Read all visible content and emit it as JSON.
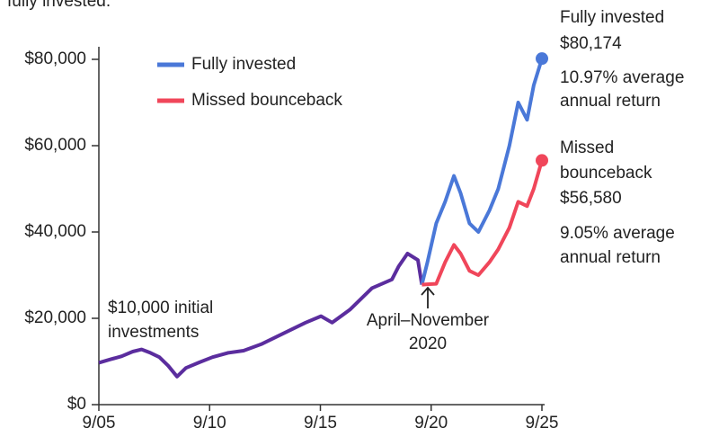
{
  "chart_data": {
    "type": "line",
    "caption_fragment": "fully invested.",
    "x": [
      2005.67,
      2006.2,
      2006.7,
      2007.2,
      2007.6,
      2008.0,
      2008.4,
      2008.8,
      2009.2,
      2009.6,
      2010.2,
      2010.8,
      2011.5,
      2012.2,
      2013.0,
      2014.0,
      2015.0,
      2015.7,
      2016.2,
      2017.0,
      2018.0,
      2018.9,
      2019.2,
      2019.6,
      2020.07,
      2020.25,
      2020.5,
      2020.9,
      2021.3,
      2021.7,
      2022.0,
      2022.4,
      2022.8,
      2023.3,
      2023.7,
      2024.2,
      2024.6,
      2025.0,
      2025.3,
      2025.67
    ],
    "series": [
      {
        "color": "#5b2d9e",
        "values": [
          9700,
          10500,
          11200,
          12300,
          12800,
          12000,
          11000,
          9000,
          6500,
          8500,
          9800,
          11000,
          12000,
          12500,
          14000,
          16500,
          19000,
          20500,
          19000,
          22000,
          27000,
          29000,
          32000,
          35000,
          33500,
          27800,
          null,
          null,
          null,
          null,
          null,
          null,
          null,
          null,
          null,
          null,
          null,
          null,
          null,
          null
        ]
      },
      {
        "name": "Fully invested",
        "color": "#4a78d8",
        "values": [
          null,
          null,
          null,
          null,
          null,
          null,
          null,
          null,
          null,
          null,
          null,
          null,
          null,
          null,
          null,
          null,
          null,
          null,
          null,
          null,
          null,
          null,
          null,
          null,
          null,
          27800,
          33000,
          42000,
          47000,
          53000,
          49000,
          42000,
          40000,
          45000,
          50000,
          60000,
          70000,
          66000,
          74000,
          80174
        ],
        "value_labels": [
          null,
          null,
          null,
          null,
          null,
          null,
          null,
          null,
          null,
          null,
          null,
          null,
          null,
          null,
          null,
          null,
          null,
          null,
          null,
          null,
          null,
          null,
          null,
          null,
          null,
          null,
          null,
          null,
          null,
          null,
          null,
          null,
          null,
          null,
          null,
          null,
          null,
          null,
          null,
          "$80,174"
        ]
      },
      {
        "name": "Missed bounceback",
        "color": "#f0465a",
        "values": [
          null,
          null,
          null,
          null,
          null,
          null,
          null,
          null,
          null,
          null,
          null,
          null,
          null,
          null,
          null,
          null,
          null,
          null,
          null,
          null,
          null,
          null,
          null,
          null,
          null,
          27800,
          27900,
          28000,
          33000,
          37000,
          35000,
          31000,
          30000,
          33000,
          36000,
          41000,
          47000,
          46000,
          50000,
          56580
        ],
        "value_labels": [
          null,
          null,
          null,
          null,
          null,
          null,
          null,
          null,
          null,
          null,
          null,
          null,
          null,
          null,
          null,
          null,
          null,
          null,
          null,
          null,
          null,
          null,
          null,
          null,
          null,
          null,
          null,
          null,
          null,
          null,
          null,
          null,
          null,
          null,
          null,
          null,
          null,
          null,
          null,
          "$56,580"
        ]
      }
    ],
    "annotations": {
      "fully_invested": [
        "Fully invested",
        "10.97% average",
        "annual return"
      ],
      "missed": [
        "Missed",
        "bounceback",
        "9.05% average",
        "annual return"
      ],
      "initial": [
        "$10,000 initial",
        "investments"
      ],
      "period": [
        "April–November",
        "2020"
      ]
    },
    "xlim": [
      2005.67,
      2025.67
    ],
    "xticks": [
      {
        "value": 2005.67,
        "label": "9/05"
      },
      {
        "value": 2010.67,
        "label": "9/10"
      },
      {
        "value": 2015.67,
        "label": "9/15"
      },
      {
        "value": 2020.67,
        "label": "9/20"
      },
      {
        "value": 2025.67,
        "label": "9/25"
      }
    ],
    "ylim": [
      0,
      80000
    ],
    "yticks": [
      {
        "value": 0,
        "label": "$0"
      },
      {
        "value": 20000,
        "label": "$20,000"
      },
      {
        "value": 40000,
        "label": "$40,000"
      },
      {
        "value": 60000,
        "label": "$60,000"
      },
      {
        "value": 80000,
        "label": "$80,000"
      }
    ],
    "legend": "top-left"
  }
}
